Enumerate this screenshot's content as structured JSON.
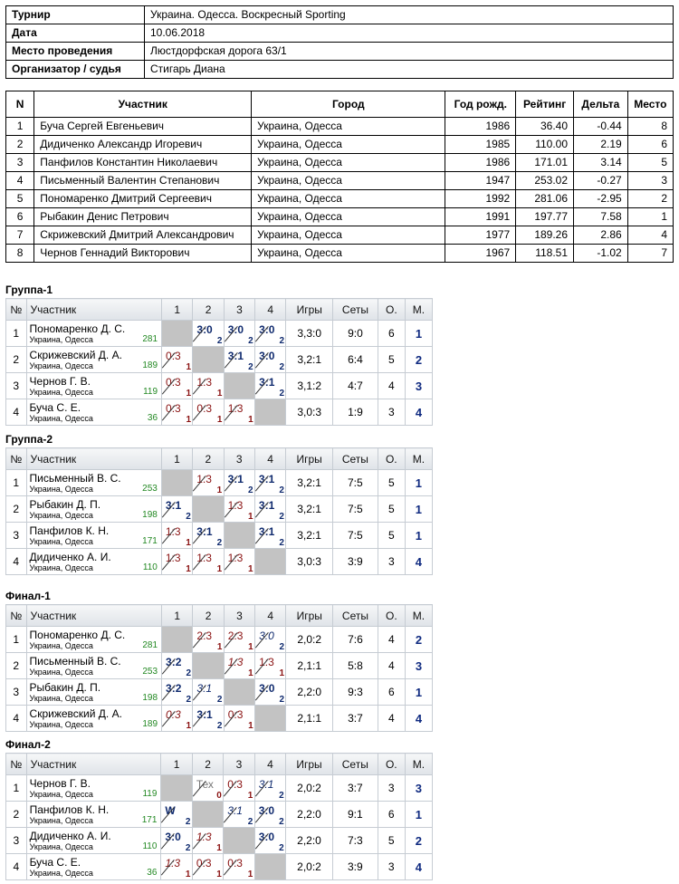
{
  "info": [
    {
      "k": "Турнир",
      "v": "Украина. Одесса. Воскресный Sporting"
    },
    {
      "k": "Дата",
      "v": "10.06.2018"
    },
    {
      "k": "Место проведения",
      "v": "Люстдорфская дорога 63/1"
    },
    {
      "k": "Организатор / судья",
      "v": "Стигарь Диана"
    }
  ],
  "participants": {
    "headers": [
      "N",
      "Участник",
      "Город",
      "Год рожд.",
      "Рейтинг",
      "Дельта",
      "Место"
    ],
    "rows": [
      [
        "1",
        "Буча Сергей Евгеньевич",
        "Украина, Одесса",
        "1986",
        "36.40",
        "-0.44",
        "8"
      ],
      [
        "2",
        "Дидиченко Александр Игоревич",
        "Украина, Одесса",
        "1985",
        "110.00",
        "2.19",
        "6"
      ],
      [
        "3",
        "Панфилов Константин Николаевич",
        "Украина, Одесса",
        "1986",
        "171.01",
        "3.14",
        "5"
      ],
      [
        "4",
        "Письменный Валентин Степанович",
        "Украина, Одесса",
        "1947",
        "253.02",
        "-0.27",
        "3"
      ],
      [
        "5",
        "Пономаренко Дмитрий Сергеевич",
        "Украина, Одесса",
        "1992",
        "281.06",
        "-2.95",
        "2"
      ],
      [
        "6",
        "Рыбакин Денис Петрович",
        "Украина, Одесса",
        "1991",
        "197.77",
        "7.58",
        "1"
      ],
      [
        "7",
        "Скрижевский Дмитрий Александрович",
        "Украина, Одесса",
        "1977",
        "189.26",
        "2.86",
        "4"
      ],
      [
        "8",
        "Чернов Геннадий Викторович",
        "Украина, Одесса",
        "1967",
        "118.51",
        "-1.02",
        "7"
      ]
    ]
  },
  "group_headers": [
    "№",
    "Участник",
    "1",
    "2",
    "3",
    "4",
    "Игры",
    "Сеты",
    "О.",
    "М."
  ],
  "groups": [
    {
      "title": "Группа-1",
      "rows": [
        {
          "n": "1",
          "name": "Пономаренко Д. С.",
          "city": "Украина, Одесса",
          "rating": "281",
          "cells": [
            null,
            {
              "s": "3:0",
              "sub": "2",
              "r": "w"
            },
            {
              "s": "3:0",
              "sub": "2",
              "r": "w"
            },
            {
              "s": "3:0",
              "sub": "2",
              "r": "w"
            }
          ],
          "games": "3,3:0",
          "sets": "9:0",
          "pts": "6",
          "place": "1"
        },
        {
          "n": "2",
          "name": "Скрижевский Д. А.",
          "city": "Украина, Одесса",
          "rating": "189",
          "cells": [
            {
              "s": "0:3",
              "sub": "1",
              "r": "l"
            },
            null,
            {
              "s": "3:1",
              "sub": "2",
              "r": "w"
            },
            {
              "s": "3:0",
              "sub": "2",
              "r": "w"
            }
          ],
          "games": "3,2:1",
          "sets": "6:4",
          "pts": "5",
          "place": "2"
        },
        {
          "n": "3",
          "name": "Чернов Г. В.",
          "city": "Украина, Одесса",
          "rating": "119",
          "cells": [
            {
              "s": "0:3",
              "sub": "1",
              "r": "l"
            },
            {
              "s": "1:3",
              "sub": "1",
              "r": "l"
            },
            null,
            {
              "s": "3:1",
              "sub": "2",
              "r": "w"
            }
          ],
          "games": "3,1:2",
          "sets": "4:7",
          "pts": "4",
          "place": "3"
        },
        {
          "n": "4",
          "name": "Буча С. Е.",
          "city": "Украина, Одесса",
          "rating": "36",
          "cells": [
            {
              "s": "0:3",
              "sub": "1",
              "r": "l"
            },
            {
              "s": "0:3",
              "sub": "1",
              "r": "l"
            },
            {
              "s": "1:3",
              "sub": "1",
              "r": "l"
            },
            null
          ],
          "games": "3,0:3",
          "sets": "1:9",
          "pts": "3",
          "place": "4"
        }
      ]
    },
    {
      "title": "Группа-2",
      "rows": [
        {
          "n": "1",
          "name": "Письменный В. С.",
          "city": "Украина, Одесса",
          "rating": "253",
          "cells": [
            null,
            {
              "s": "1:3",
              "sub": "1",
              "r": "l"
            },
            {
              "s": "3:1",
              "sub": "2",
              "r": "w"
            },
            {
              "s": "3:1",
              "sub": "2",
              "r": "w"
            }
          ],
          "games": "3,2:1",
          "sets": "7:5",
          "pts": "5",
          "place": "1"
        },
        {
          "n": "2",
          "name": "Рыбакин Д. П.",
          "city": "Украина, Одесса",
          "rating": "198",
          "cells": [
            {
              "s": "3:1",
              "sub": "2",
              "r": "w"
            },
            null,
            {
              "s": "1:3",
              "sub": "1",
              "r": "l"
            },
            {
              "s": "3:1",
              "sub": "2",
              "r": "w"
            }
          ],
          "games": "3,2:1",
          "sets": "7:5",
          "pts": "5",
          "place": "1"
        },
        {
          "n": "3",
          "name": "Панфилов К. Н.",
          "city": "Украина, Одесса",
          "rating": "171",
          "cells": [
            {
              "s": "1:3",
              "sub": "1",
              "r": "l"
            },
            {
              "s": "3:1",
              "sub": "2",
              "r": "w"
            },
            null,
            {
              "s": "3:1",
              "sub": "2",
              "r": "w"
            }
          ],
          "games": "3,2:1",
          "sets": "7:5",
          "pts": "5",
          "place": "1"
        },
        {
          "n": "4",
          "name": "Дидиченко А. И.",
          "city": "Украина, Одесса",
          "rating": "110",
          "cells": [
            {
              "s": "1:3",
              "sub": "1",
              "r": "l"
            },
            {
              "s": "1:3",
              "sub": "1",
              "r": "l"
            },
            {
              "s": "1:3",
              "sub": "1",
              "r": "l"
            },
            null
          ],
          "games": "3,0:3",
          "sets": "3:9",
          "pts": "3",
          "place": "4"
        }
      ]
    },
    {
      "title": "Финал-1",
      "rows": [
        {
          "n": "1",
          "name": "Пономаренко Д. С.",
          "city": "Украина, Одесса",
          "rating": "281",
          "cells": [
            null,
            {
              "s": "2:3",
              "sub": "1",
              "r": "l"
            },
            {
              "s": "2:3",
              "sub": "1",
              "r": "l"
            },
            {
              "s": "3:0",
              "sub": "2",
              "r": "i"
            }
          ],
          "games": "2,0:2",
          "sets": "7:6",
          "pts": "4",
          "place": "2"
        },
        {
          "n": "2",
          "name": "Письменный В. С.",
          "city": "Украина, Одесса",
          "rating": "253",
          "cells": [
            {
              "s": "3:2",
              "sub": "2",
              "r": "w"
            },
            null,
            {
              "s": "1:3",
              "sub": "1",
              "r": "li"
            },
            {
              "s": "1:3",
              "sub": "1",
              "r": "l"
            }
          ],
          "games": "2,1:1",
          "sets": "5:8",
          "pts": "4",
          "place": "3"
        },
        {
          "n": "3",
          "name": "Рыбакин Д. П.",
          "city": "Украина, Одесса",
          "rating": "198",
          "cells": [
            {
              "s": "3:2",
              "sub": "2",
              "r": "w"
            },
            {
              "s": "3:1",
              "sub": "2",
              "r": "i"
            },
            null,
            {
              "s": "3:0",
              "sub": "2",
              "r": "w"
            }
          ],
          "games": "2,2:0",
          "sets": "9:3",
          "pts": "6",
          "place": "1"
        },
        {
          "n": "4",
          "name": "Скрижевский Д. А.",
          "city": "Украина, Одесса",
          "rating": "189",
          "cells": [
            {
              "s": "0:3",
              "sub": "1",
              "r": "li"
            },
            {
              "s": "3:1",
              "sub": "2",
              "r": "w"
            },
            {
              "s": "0:3",
              "sub": "1",
              "r": "l"
            },
            null
          ],
          "games": "2,1:1",
          "sets": "3:7",
          "pts": "4",
          "place": "4"
        }
      ]
    },
    {
      "title": "Финал-2",
      "rows": [
        {
          "n": "1",
          "name": "Чернов Г. В.",
          "city": "Украина, Одесса",
          "rating": "119",
          "cells": [
            null,
            {
              "s": "Тех",
              "sub": "0",
              "r": "t"
            },
            {
              "s": "0:3",
              "sub": "1",
              "r": "l"
            },
            {
              "s": "3:1",
              "sub": "2",
              "r": "i"
            }
          ],
          "games": "2,0:2",
          "sets": "3:7",
          "pts": "3",
          "place": "3"
        },
        {
          "n": "2",
          "name": "Панфилов К. Н.",
          "city": "Украина, Одесса",
          "rating": "171",
          "cells": [
            {
              "s": "W",
              "sub": "2",
              "r": "w"
            },
            null,
            {
              "s": "3:1",
              "sub": "2",
              "r": "i"
            },
            {
              "s": "3:0",
              "sub": "2",
              "r": "w"
            }
          ],
          "games": "2,2:0",
          "sets": "9:1",
          "pts": "6",
          "place": "1"
        },
        {
          "n": "3",
          "name": "Дидиченко А. И.",
          "city": "Украина, Одесса",
          "rating": "110",
          "cells": [
            {
              "s": "3:0",
              "sub": "2",
              "r": "w"
            },
            {
              "s": "1:3",
              "sub": "1",
              "r": "li"
            },
            null,
            {
              "s": "3:0",
              "sub": "2",
              "r": "w"
            }
          ],
          "games": "2,2:0",
          "sets": "7:3",
          "pts": "5",
          "place": "2"
        },
        {
          "n": "4",
          "name": "Буча С. Е.",
          "city": "Украина, Одесса",
          "rating": "36",
          "cells": [
            {
              "s": "1:3",
              "sub": "1",
              "r": "li"
            },
            {
              "s": "0:3",
              "sub": "1",
              "r": "l"
            },
            {
              "s": "0:3",
              "sub": "1",
              "r": "l"
            },
            null
          ],
          "games": "2,0:2",
          "sets": "3:9",
          "pts": "3",
          "place": "4"
        }
      ]
    }
  ]
}
